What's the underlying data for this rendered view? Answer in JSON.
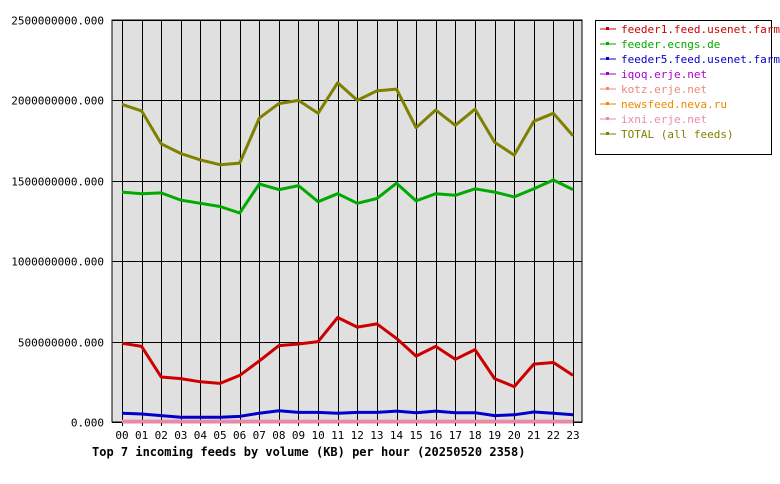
{
  "chart_data": {
    "type": "line",
    "title": "Top 7 incoming feeds by volume (KB) per hour (20250520 2358)",
    "xlabel": "",
    "ylabel": "",
    "categories": [
      "00",
      "01",
      "02",
      "03",
      "04",
      "05",
      "06",
      "07",
      "08",
      "09",
      "10",
      "11",
      "12",
      "13",
      "14",
      "15",
      "16",
      "17",
      "18",
      "19",
      "20",
      "21",
      "22",
      "23"
    ],
    "ylim": [
      0,
      2500000000
    ],
    "yticks": [
      "0.000",
      "500000000.000",
      "1000000000.000",
      "1500000000.000",
      "2000000000.000",
      "2500000000.000"
    ],
    "ytick_values": [
      0,
      500000000,
      1000000000,
      1500000000,
      2000000000,
      2500000000
    ],
    "grid": true,
    "legend_position": "right",
    "background": "#e0e0e0",
    "series": [
      {
        "name": "feeder1.feed.usenet.farm",
        "color": "#cc0000",
        "values": [
          490000000,
          470000000,
          280000000,
          270000000,
          250000000,
          240000000,
          290000000,
          380000000,
          475000000,
          485000000,
          500000000,
          650000000,
          590000000,
          610000000,
          520000000,
          410000000,
          470000000,
          390000000,
          450000000,
          270000000,
          220000000,
          360000000,
          370000000,
          290000000
        ]
      },
      {
        "name": "feeder.ecngs.de",
        "color": "#00aa00",
        "values": [
          1430000000,
          1420000000,
          1425000000,
          1380000000,
          1360000000,
          1340000000,
          1300000000,
          1480000000,
          1445000000,
          1470000000,
          1370000000,
          1420000000,
          1360000000,
          1390000000,
          1485000000,
          1375000000,
          1420000000,
          1410000000,
          1450000000,
          1430000000,
          1400000000,
          1450000000,
          1505000000,
          1445000000
        ]
      },
      {
        "name": "feeder5.feed.usenet.farm",
        "color": "#0000cc",
        "values": [
          55000000,
          50000000,
          40000000,
          30000000,
          30000000,
          30000000,
          35000000,
          55000000,
          70000000,
          60000000,
          60000000,
          55000000,
          60000000,
          60000000,
          68000000,
          58000000,
          68000000,
          58000000,
          58000000,
          40000000,
          45000000,
          62000000,
          55000000,
          45000000
        ]
      },
      {
        "name": "iqoq.erje.net",
        "color": "#aa00cc",
        "values": [
          2000000,
          2000000,
          2000000,
          2000000,
          2000000,
          2000000,
          2000000,
          2000000,
          2000000,
          2000000,
          2000000,
          2000000,
          2000000,
          2000000,
          2000000,
          2000000,
          2000000,
          2000000,
          2000000,
          2000000,
          2000000,
          2000000,
          2000000,
          2000000
        ]
      },
      {
        "name": "kotz.erje.net",
        "color": "#ee8877",
        "values": [
          4000000,
          4000000,
          4000000,
          4000000,
          4000000,
          4000000,
          4000000,
          4000000,
          4000000,
          4000000,
          4000000,
          4000000,
          4000000,
          4000000,
          4000000,
          4000000,
          4000000,
          4000000,
          4000000,
          4000000,
          4000000,
          4000000,
          4000000,
          4000000
        ]
      },
      {
        "name": "newsfeed.neva.ru",
        "color": "#ee8800",
        "values": [
          3000000,
          3000000,
          3000000,
          3000000,
          3000000,
          3000000,
          3000000,
          3000000,
          3000000,
          3000000,
          3000000,
          3000000,
          3000000,
          3000000,
          3000000,
          3000000,
          3000000,
          3000000,
          3000000,
          3000000,
          3000000,
          3000000,
          3000000,
          3000000
        ]
      },
      {
        "name": "ixni.erje.net",
        "color": "#ee88aa",
        "values": [
          5000000,
          5000000,
          5000000,
          5000000,
          5000000,
          5000000,
          5000000,
          5000000,
          5000000,
          5000000,
          5000000,
          5000000,
          5000000,
          5000000,
          5000000,
          5000000,
          5000000,
          5000000,
          5000000,
          5000000,
          5000000,
          5000000,
          5000000,
          5000000
        ]
      },
      {
        "name": "TOTAL (all feeds)",
        "color": "#808000",
        "values": [
          1975000000,
          1935000000,
          1730000000,
          1670000000,
          1630000000,
          1600000000,
          1610000000,
          1890000000,
          1980000000,
          2000000000,
          1920000000,
          2110000000,
          2000000000,
          2060000000,
          2070000000,
          1830000000,
          1940000000,
          1845000000,
          1945000000,
          1740000000,
          1660000000,
          1870000000,
          1920000000,
          1780000000
        ]
      }
    ]
  }
}
